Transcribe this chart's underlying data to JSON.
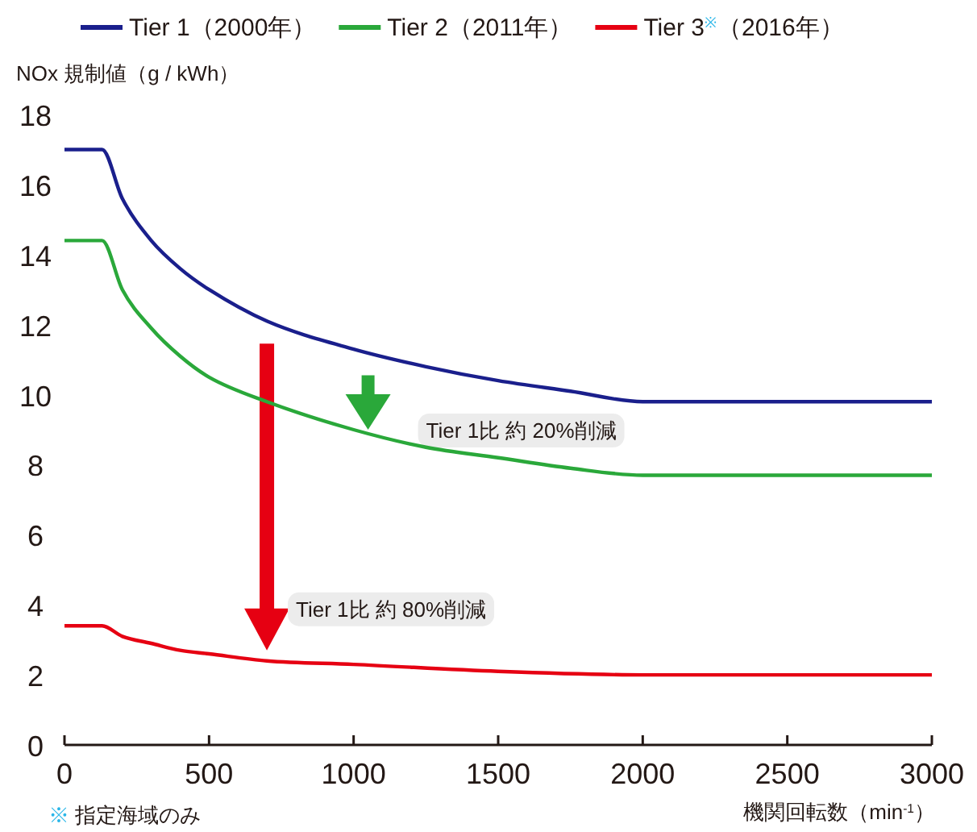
{
  "chart_data": {
    "type": "line",
    "xlabel": "機関回転数（min$^{-1}$）",
    "ylabel": "NOx 規制値（g / kWh）",
    "xlim": [
      0,
      3000
    ],
    "xticks": [
      0,
      500,
      1000,
      1500,
      2000,
      2500,
      3000
    ],
    "ylim": [
      0,
      18
    ],
    "yticks": [
      0,
      2,
      4,
      6,
      8,
      10,
      12,
      14,
      16,
      18
    ],
    "legend": "top",
    "grid": false,
    "marker": "none",
    "line_style": "solid",
    "series": [
      {
        "name": "Tier 1（2000年）",
        "color": "#1a1f8c",
        "x": [
          0,
          130,
          200,
          300,
          400,
          500,
          700,
          1000,
          1250,
          1500,
          1750,
          2000,
          3000
        ],
        "values": [
          17.0,
          17.0,
          15.6,
          14.4,
          13.6,
          13.0,
          12.1,
          11.3,
          10.8,
          10.4,
          10.1,
          9.8,
          9.8
        ]
      },
      {
        "name": "Tier 2（2011年）",
        "color": "#2aa83a",
        "x": [
          0,
          130,
          200,
          300,
          400,
          500,
          700,
          1000,
          1250,
          1500,
          1750,
          2000,
          3000
        ],
        "values": [
          14.4,
          14.4,
          13.0,
          11.9,
          11.1,
          10.5,
          9.8,
          9.0,
          8.5,
          8.2,
          7.9,
          7.7,
          7.7
        ]
      },
      {
        "name": "Tier 3$^{※}$（2016年）",
        "color": "#e60012",
        "x": [
          0,
          130,
          200,
          300,
          400,
          500,
          700,
          1000,
          1500,
          2000,
          3000
        ],
        "values": [
          3.4,
          3.4,
          3.1,
          2.9,
          2.7,
          2.6,
          2.4,
          2.3,
          2.1,
          2.0,
          2.0
        ]
      }
    ],
    "annotations": [
      {
        "text": "Tier 1比 約 20%削減",
        "x": 1050,
        "y": 9.0
      },
      {
        "text": "Tier 1比 約 80%削減",
        "x": 700,
        "y": 2.7
      },
      "※ 指定海域のみ"
    ]
  }
}
